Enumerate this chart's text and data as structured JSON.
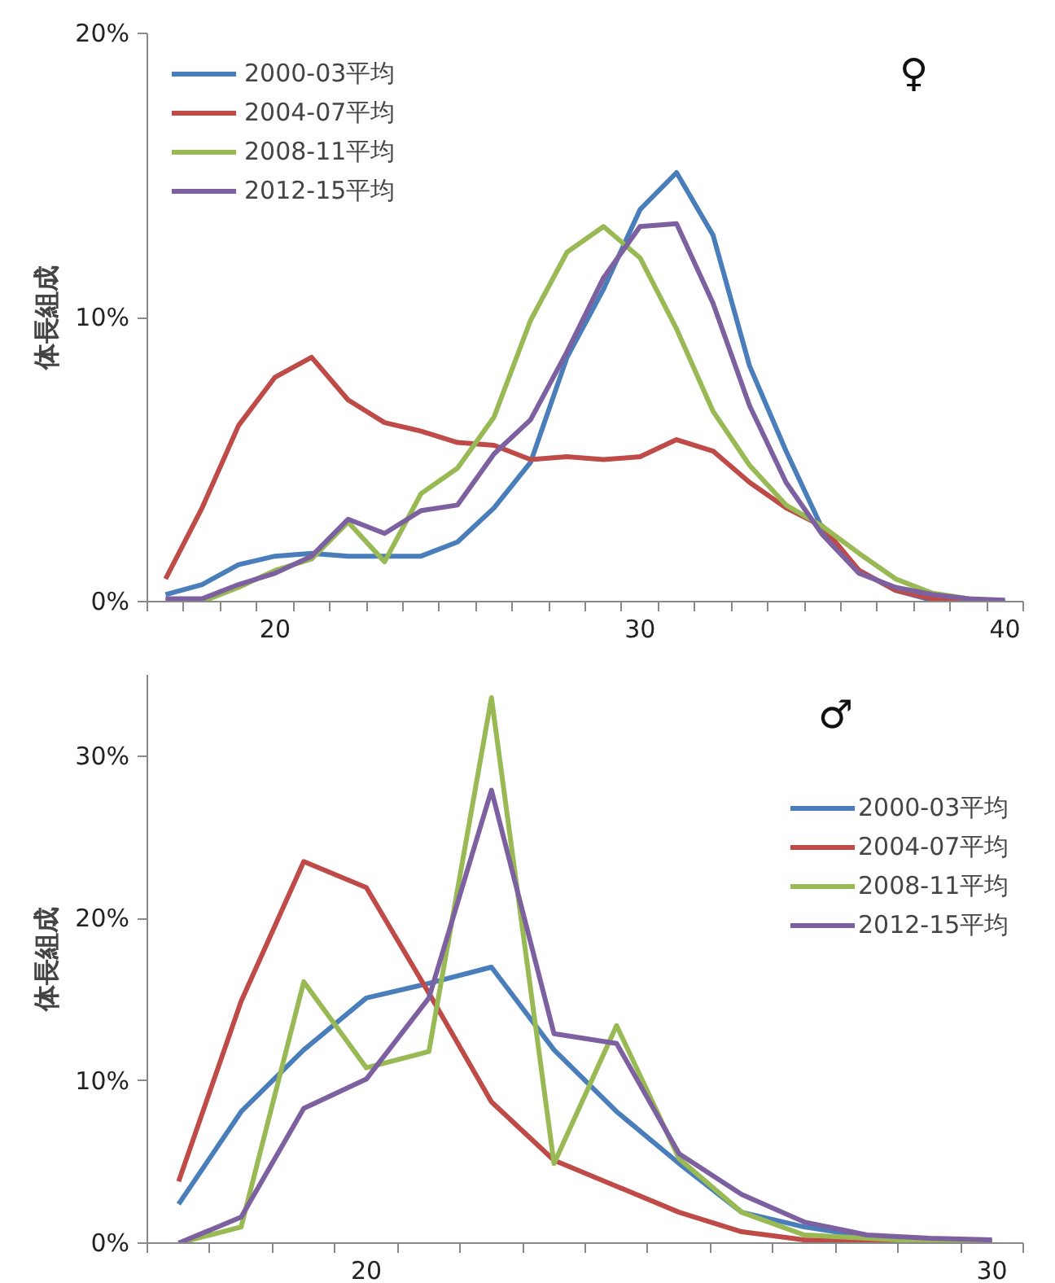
{
  "chart_data": [
    {
      "type": "line",
      "ylabel": "体長組成",
      "annotations": [
        "♀"
      ],
      "legend": "top left",
      "grid": false,
      "categories": [
        null,
        null,
        null,
        "20",
        null,
        null,
        null,
        null,
        null,
        null,
        null,
        null,
        null,
        "30",
        null,
        null,
        null,
        null,
        null,
        null,
        null,
        null,
        null,
        "40"
      ],
      "ylim": [
        0,
        20
      ],
      "yticks": [
        {
          "value": 0,
          "label": "0%"
        },
        {
          "value": 10,
          "label": "10%"
        },
        {
          "value": 20,
          "label": "20%"
        }
      ],
      "series": [
        {
          "name": "2000-03平均",
          "color": "#4a7ebb",
          "values": [
            0.25,
            0.6,
            1.3,
            1.6,
            1.7,
            1.6,
            1.6,
            1.6,
            2.1,
            3.3,
            4.9,
            8.6,
            11.0,
            13.8,
            15.1,
            12.9,
            8.3,
            5.3,
            2.55,
            1.1,
            0.4,
            0.05,
            0,
            0
          ]
        },
        {
          "name": "2004-07平均",
          "color": "#be4b48",
          "values": [
            0.8,
            3.3,
            6.2,
            7.9,
            8.6,
            7.1,
            6.3,
            6.0,
            5.6,
            5.5,
            5.0,
            5.1,
            5.0,
            5.1,
            5.7,
            5.3,
            4.2,
            3.3,
            2.65,
            1.1,
            0.4,
            0.1,
            0,
            0
          ]
        },
        {
          "name": "2008-11平均",
          "color": "#98b954",
          "values": [
            0,
            0,
            0.5,
            1.1,
            1.5,
            2.8,
            1.4,
            3.8,
            4.7,
            6.5,
            9.9,
            12.3,
            13.2,
            12.1,
            9.6,
            6.7,
            4.8,
            3.4,
            2.65,
            1.7,
            0.8,
            0.3,
            0.1,
            0
          ]
        },
        {
          "name": "2012-15平均",
          "color": "#7d60a0",
          "values": [
            0.1,
            0.1,
            0.6,
            1.0,
            1.6,
            2.9,
            2.4,
            3.2,
            3.4,
            5.2,
            6.4,
            8.8,
            11.4,
            13.2,
            13.3,
            10.5,
            6.9,
            4.2,
            2.35,
            1.0,
            0.5,
            0.25,
            0.1,
            0.05
          ]
        }
      ]
    },
    {
      "type": "line",
      "ylabel": "体長組成",
      "annotations": [
        "♂"
      ],
      "legend": "top right",
      "grid": false,
      "categories": [
        null,
        null,
        null,
        "20",
        null,
        null,
        null,
        null,
        null,
        null,
        null,
        null,
        null,
        "30"
      ],
      "ylim": [
        0,
        35
      ],
      "yticks": [
        {
          "value": 0,
          "label": "0%"
        },
        {
          "value": 10,
          "label": "10%"
        },
        {
          "value": 20,
          "label": "20%"
        },
        {
          "value": 30,
          "label": "30%"
        }
      ],
      "series": [
        {
          "name": "2000-03平均",
          "color": "#4a7ebb",
          "values": [
            2.4,
            8.1,
            11.9,
            15.1,
            16.0,
            17.0,
            11.9,
            8.1,
            4.9,
            1.9,
            1.0,
            0.4,
            0.2,
            0.1
          ]
        },
        {
          "name": "2004-07平均",
          "color": "#be4b48",
          "values": [
            3.8,
            14.9,
            23.5,
            21.9,
            15.4,
            8.7,
            5.1,
            3.5,
            1.9,
            0.7,
            0.2,
            0.1,
            0,
            0
          ]
        },
        {
          "name": "2008-11平均",
          "color": "#98b954",
          "values": [
            0,
            1.0,
            16.1,
            10.8,
            11.8,
            33.6,
            4.9,
            13.4,
            5.2,
            1.9,
            0.5,
            0.3,
            0.1,
            0
          ]
        },
        {
          "name": "2012-15平均",
          "color": "#7d60a0",
          "values": [
            0,
            1.6,
            8.3,
            10.1,
            15.1,
            27.9,
            12.9,
            12.3,
            5.5,
            3.0,
            1.3,
            0.5,
            0.3,
            0.2
          ]
        }
      ]
    }
  ]
}
